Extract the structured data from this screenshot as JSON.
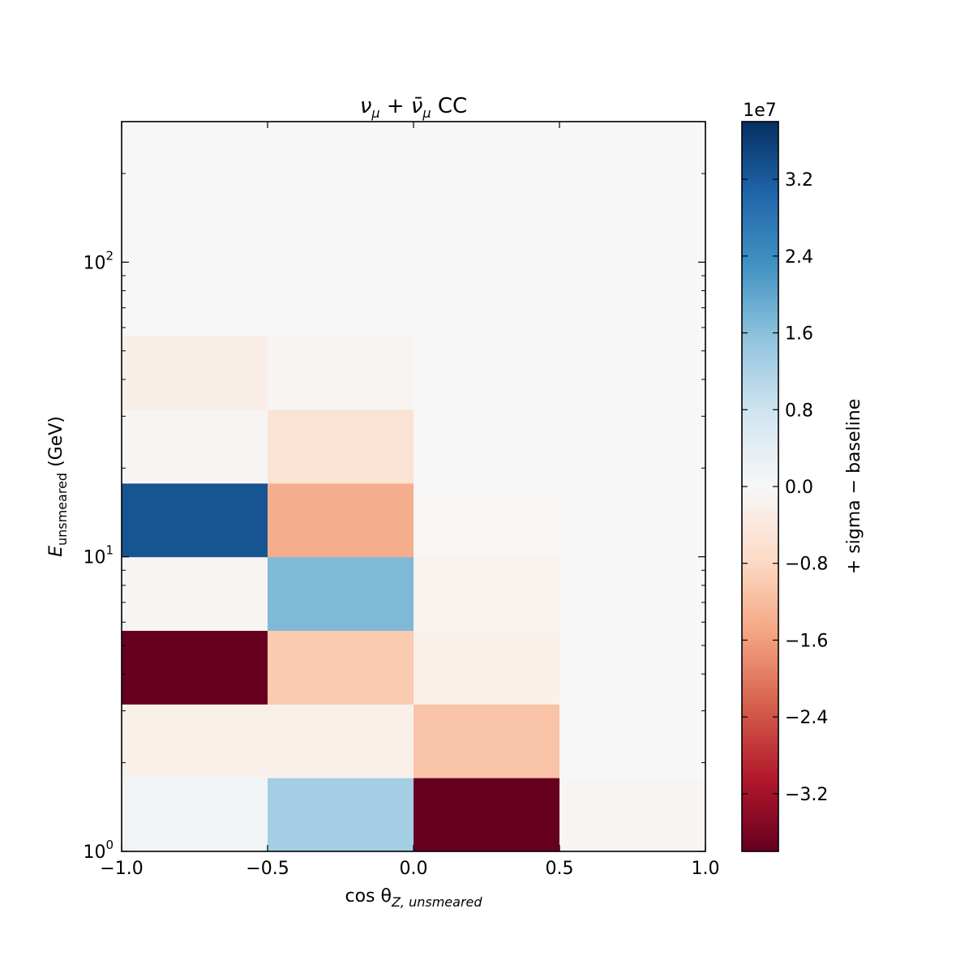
{
  "chart_data": {
    "type": "heatmap",
    "title_parts": {
      "nu": "ν",
      "mu_sub": "μ",
      "plus": " + ",
      "nubar": "ν̄",
      "cc": " CC"
    },
    "xlabel_parts": {
      "main": "cos θ",
      "sub": "Z, unsmeared"
    },
    "ylabel_parts": {
      "main": "E",
      "sub": "unsmeared",
      "unit": " (GeV)"
    },
    "x_edges": [
      -1.0,
      -0.5,
      0.0,
      0.5,
      1.0
    ],
    "y_scale": "log",
    "ylim": [
      1,
      300
    ],
    "y_edges": [
      1.0,
      1.778,
      3.162,
      5.623,
      10.0,
      17.78,
      31.62,
      56.23,
      100.0,
      300.0
    ],
    "x_ticks": [
      {
        "value": -1.0,
        "label": "−1.0"
      },
      {
        "value": -0.5,
        "label": "−0.5"
      },
      {
        "value": 0.0,
        "label": "0.0"
      },
      {
        "value": 0.5,
        "label": "0.5"
      },
      {
        "value": 1.0,
        "label": "1.0"
      }
    ],
    "y_major_ticks": [
      {
        "value": 1,
        "base": "10",
        "exp": "0"
      },
      {
        "value": 10,
        "base": "10",
        "exp": "1"
      },
      {
        "value": 100,
        "base": "10",
        "exp": "2"
      }
    ],
    "values_rows_by_energy_bin": [
      [
        1200000,
        13000000,
        -38000000,
        -700000
      ],
      [
        -2000000,
        -2000000,
        -11000000,
        0
      ],
      [
        -38000000,
        -10000000,
        -2000000,
        0
      ],
      [
        -600000,
        17000000,
        -1200000,
        0
      ],
      [
        33000000,
        -14000000,
        -300000,
        0
      ],
      [
        -600000,
        -5500000,
        0,
        0
      ],
      [
        -2500000,
        -900000,
        0,
        0
      ],
      [
        -200000,
        0,
        0,
        0
      ],
      [
        0,
        0,
        0,
        0
      ]
    ],
    "colorbar": {
      "colormap": "RdBu",
      "range": [
        -38000000,
        38000000
      ],
      "multiplier_label": "1e7",
      "label": "+ sigma − baseline",
      "ticks": [
        {
          "value": 32000000,
          "label": "3.2"
        },
        {
          "value": 24000000,
          "label": "2.4"
        },
        {
          "value": 16000000,
          "label": "1.6"
        },
        {
          "value": 8000000,
          "label": "0.8"
        },
        {
          "value": 0,
          "label": "0.0"
        },
        {
          "value": -8000000,
          "label": "−0.8"
        },
        {
          "value": -16000000,
          "label": "−1.6"
        },
        {
          "value": -24000000,
          "label": "−2.4"
        },
        {
          "value": -32000000,
          "label": "−3.2"
        }
      ]
    }
  }
}
